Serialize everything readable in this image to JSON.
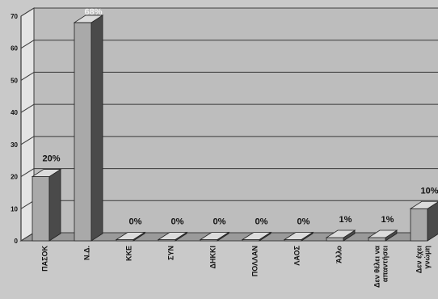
{
  "chart_data": {
    "type": "bar",
    "categories": [
      "ΠΑΣΟΚ",
      "Ν.Δ.",
      "ΚΚΕ",
      "ΣΥΝ",
      "ΔΗΚΚΙ",
      "ΠΟΛΛΑΝ",
      "ΛΑΟΣ",
      "Άλλο",
      "Δεν θέλει να απαντήσει",
      "Δεν έχει γνώμη"
    ],
    "category_lines": [
      [
        "ΠΑΣΟΚ"
      ],
      [
        "Ν.Δ."
      ],
      [
        "ΚΚΕ"
      ],
      [
        "ΣΥΝ"
      ],
      [
        "ΔΗΚΚΙ"
      ],
      [
        "ΠΟΛΛΑΝ"
      ],
      [
        "ΛΑΟΣ"
      ],
      [
        "Άλλο"
      ],
      [
        "Δεν θέλει να",
        "απαντήσει"
      ],
      [
        "Δεν έχει",
        "γνώμη"
      ]
    ],
    "values": [
      20,
      68,
      0,
      0,
      0,
      0,
      0,
      1,
      1,
      10
    ],
    "data_labels": [
      "20%",
      "68%",
      "0%",
      "0%",
      "0%",
      "0%",
      "0%",
      "1%",
      "1%",
      "10%"
    ],
    "ylim": [
      0,
      70
    ],
    "yticks": [
      0,
      10,
      20,
      30,
      40,
      50,
      60,
      70
    ],
    "grid": true,
    "title": "",
    "xlabel": "",
    "ylabel": "",
    "colors": {
      "background": "#c9c9c9",
      "plot_back": "#bdbdbd",
      "left_wall": "#e4e4e4",
      "floor": "#9a9a9a",
      "bar_front": "#a9a9a9",
      "bar_side": "#4a4a4a",
      "bar_top": "#dcdcdc",
      "grid": "#3a3a3a",
      "text": "#111111",
      "label_text": "#f2f2f2"
    }
  }
}
